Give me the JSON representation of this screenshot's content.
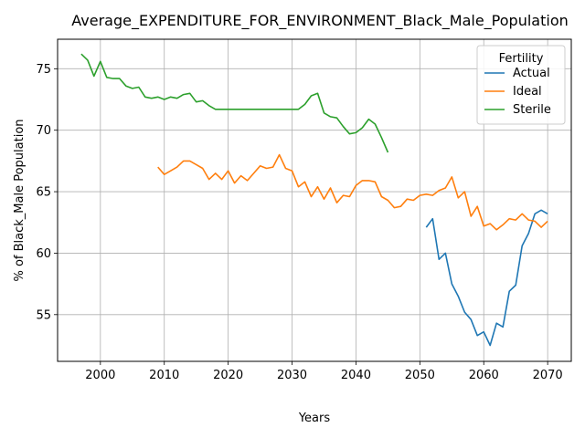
{
  "chart_data": {
    "type": "line",
    "title": "Average_EXPENDITURE_FOR_ENVIRONMENT_Black_Male_Population",
    "xlabel": "Years",
    "ylabel": "% of Black_Male Population",
    "xlim": [
      1993.3,
      2073.7
    ],
    "ylim": [
      51.2,
      77.4
    ],
    "xticks": [
      2000,
      2010,
      2020,
      2030,
      2040,
      2050,
      2060,
      2070
    ],
    "yticks": [
      55,
      60,
      65,
      70,
      75
    ],
    "grid": true,
    "legend": {
      "title": "Fertility",
      "position": "top-right"
    },
    "series": [
      {
        "name": "Actual",
        "color": "#1f77b4",
        "x": [
          2051,
          2052,
          2053,
          2054,
          2055,
          2056,
          2057,
          2058,
          2059,
          2060,
          2061,
          2062,
          2063,
          2064,
          2065,
          2066,
          2067,
          2068,
          2069,
          2070
        ],
        "y": [
          62.1,
          62.8,
          59.5,
          60.0,
          57.5,
          56.5,
          55.2,
          54.6,
          53.3,
          53.6,
          52.5,
          54.3,
          54.0,
          56.9,
          57.4,
          60.6,
          61.6,
          63.2,
          63.5,
          63.2
        ]
      },
      {
        "name": "Ideal",
        "color": "#ff7f0e",
        "x": [
          2009,
          2010,
          2011,
          2012,
          2013,
          2014,
          2015,
          2016,
          2017,
          2018,
          2019,
          2020,
          2021,
          2022,
          2023,
          2024,
          2025,
          2026,
          2027,
          2028,
          2029,
          2030,
          2031,
          2032,
          2033,
          2034,
          2035,
          2036,
          2037,
          2038,
          2039,
          2040,
          2041,
          2042,
          2043,
          2044,
          2045,
          2046,
          2047,
          2048,
          2049,
          2050,
          2051,
          2052,
          2053,
          2054,
          2055,
          2056,
          2057,
          2058,
          2059,
          2060,
          2061,
          2062,
          2063,
          2064,
          2065,
          2066,
          2067,
          2068,
          2069,
          2070
        ],
        "y": [
          67.0,
          66.4,
          66.7,
          67.0,
          67.5,
          67.5,
          67.2,
          66.9,
          66.0,
          66.5,
          66.0,
          66.7,
          65.7,
          66.3,
          65.9,
          66.5,
          67.1,
          66.9,
          67.0,
          68.0,
          66.9,
          66.7,
          65.4,
          65.8,
          64.6,
          65.4,
          64.4,
          65.3,
          64.1,
          64.7,
          64.6,
          65.5,
          65.9,
          65.9,
          65.8,
          64.6,
          64.3,
          63.7,
          63.8,
          64.4,
          64.3,
          64.7,
          64.8,
          64.7,
          65.1,
          65.3,
          66.2,
          64.5,
          65.0,
          63.0,
          63.8,
          62.2,
          62.4,
          61.9,
          62.3,
          62.8,
          62.7,
          63.2,
          62.7,
          62.6,
          62.1,
          62.6
        ]
      },
      {
        "name": "Sterile",
        "color": "#2ca02c",
        "x": [
          1997,
          1998,
          1999,
          2000,
          2001,
          2002,
          2003,
          2004,
          2005,
          2006,
          2007,
          2008,
          2009,
          2010,
          2011,
          2012,
          2013,
          2014,
          2015,
          2016,
          2017,
          2018,
          2019,
          2020,
          2021,
          2022,
          2023,
          2024,
          2025,
          2026,
          2027,
          2028,
          2029,
          2030,
          2031,
          2032,
          2033,
          2034,
          2035,
          2036,
          2037,
          2038,
          2039,
          2040,
          2041,
          2042,
          2043,
          2044,
          2045
        ],
        "y": [
          76.2,
          75.7,
          74.4,
          75.6,
          74.3,
          74.2,
          74.2,
          73.6,
          73.4,
          73.5,
          72.7,
          72.6,
          72.7,
          72.5,
          72.7,
          72.6,
          72.9,
          73.0,
          72.3,
          72.4,
          72.0,
          71.7,
          71.7,
          71.7,
          71.7,
          71.7,
          71.7,
          71.7,
          71.7,
          71.7,
          71.7,
          71.7,
          71.7,
          71.7,
          71.7,
          72.1,
          72.8,
          73.0,
          71.4,
          71.1,
          71.0,
          70.3,
          69.7,
          69.8,
          70.2,
          70.9,
          70.5,
          69.4,
          68.2
        ]
      }
    ]
  }
}
